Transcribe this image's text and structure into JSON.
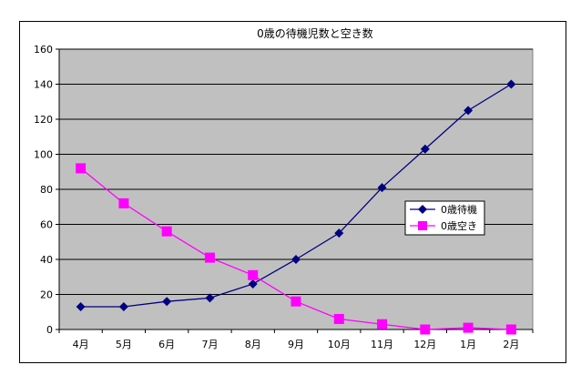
{
  "chart_data": {
    "type": "line",
    "title": "0歳の待機児数と空き数",
    "categories": [
      "4月",
      "5月",
      "6月",
      "7月",
      "8月",
      "9月",
      "10月",
      "11月",
      "12月",
      "1月",
      "2月"
    ],
    "series": [
      {
        "name": "0歳待機",
        "values": [
          13,
          13,
          16,
          18,
          26,
          40,
          55,
          81,
          103,
          125,
          140
        ],
        "color": "#000080",
        "marker": "diamond"
      },
      {
        "name": "0歳空き",
        "values": [
          92,
          72,
          56,
          41,
          31,
          16,
          6,
          3,
          0,
          1,
          0
        ],
        "color": "#ff00ff",
        "marker": "square"
      }
    ],
    "ylim": [
      0,
      160
    ],
    "yticks": [
      0,
      20,
      40,
      60,
      80,
      100,
      120,
      140,
      160
    ],
    "xlabel": "",
    "ylabel": "",
    "grid": true,
    "plot_background": "#c0c0c0",
    "legend_position": "right"
  }
}
